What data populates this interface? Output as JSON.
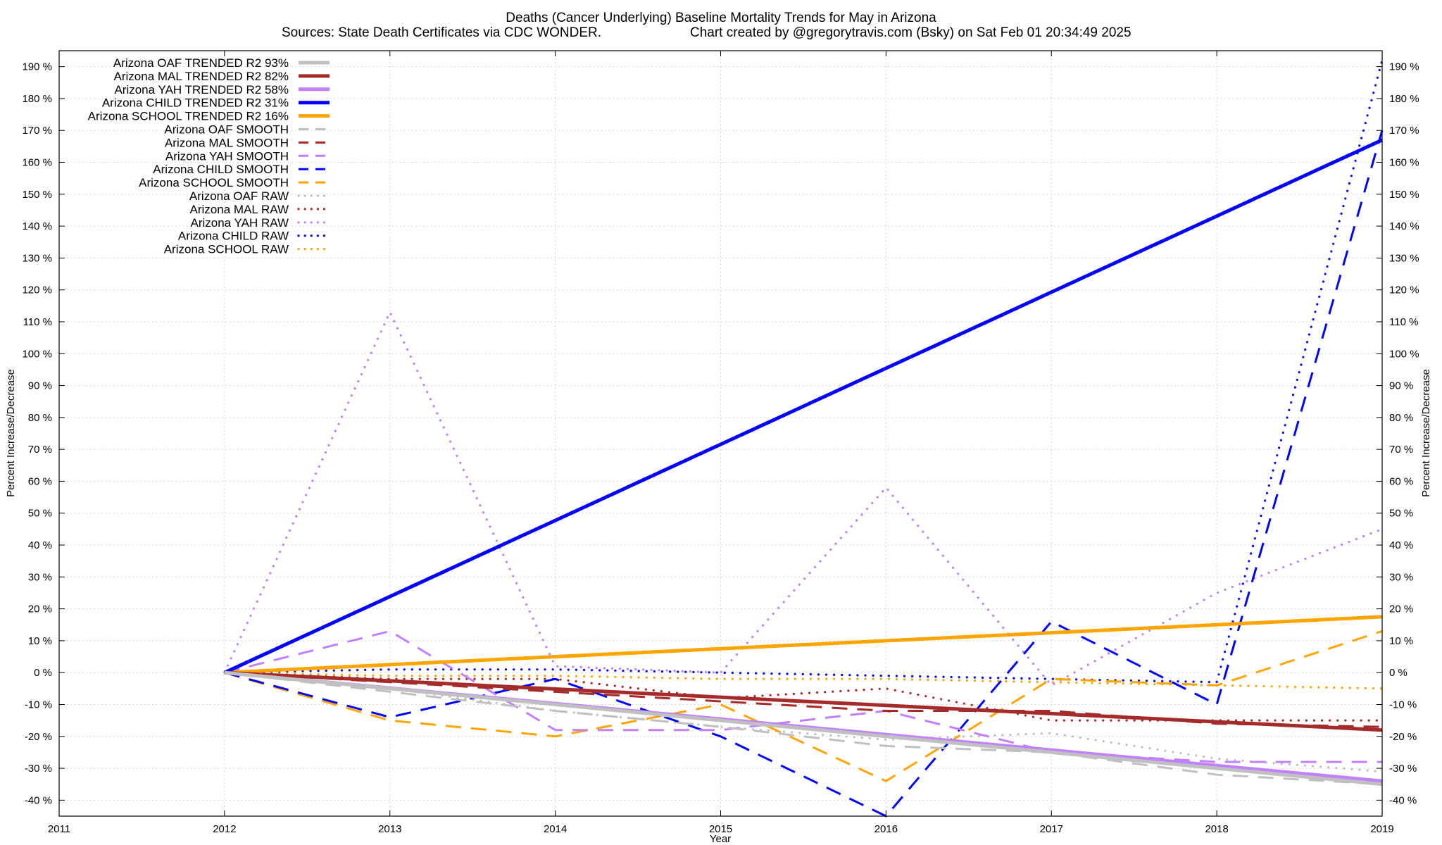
{
  "chart_data": {
    "type": "line",
    "title": "Deaths (Cancer Underlying)  Baseline Mortality Trends for May in Arizona",
    "subtitle_left": "Sources: State Death Certificates via CDC WONDER.",
    "subtitle_right": "Chart created by @gregorytravis.com (Bsky) on Sat Feb 01 20:34:49 2025",
    "xlabel": "Year",
    "ylabel": "Percent Increase/Decrease",
    "y2label": "Percent Increase/Decrease",
    "xlim": [
      2011,
      2019
    ],
    "ylim": [
      -45,
      195
    ],
    "x_ticks": [
      "2011",
      "2012",
      "2013",
      "2014",
      "2015",
      "2016",
      "2017",
      "2018",
      "2019"
    ],
    "y_ticks": [
      "-40 %",
      "-30 %",
      "-20 %",
      "-10 %",
      "0 %",
      "10 %",
      "20 %",
      "30 %",
      "40 %",
      "50 %",
      "60 %",
      "70 %",
      "80 %",
      "90 %",
      "100 %",
      "110 %",
      "120 %",
      "130 %",
      "140 %",
      "150 %",
      "160 %",
      "170 %",
      "180 %",
      "190 %"
    ],
    "grid": true,
    "legend_position": "top-left",
    "series": [
      {
        "name": "Arizona OAF TRENDED R2  93%",
        "color": "#c0c0c0",
        "style": "solid",
        "x": [
          2012,
          2019
        ],
        "y": [
          0,
          -35
        ]
      },
      {
        "name": "Arizona MAL TRENDED R2  82%",
        "color": "#a52a2a",
        "style": "solid",
        "x": [
          2012,
          2019
        ],
        "y": [
          0,
          -18
        ]
      },
      {
        "name": "Arizona YAH TRENDED R2  58%",
        "color": "#c080ff",
        "style": "solid",
        "x": [
          2012,
          2019
        ],
        "y": [
          0,
          -34
        ]
      },
      {
        "name": "Arizona CHILD TRENDED R2  31%",
        "color": "#0000ff",
        "style": "solid",
        "x": [
          2012,
          2019
        ],
        "y": [
          0,
          167
        ]
      },
      {
        "name": "Arizona SCHOOL TRENDED R2  16%",
        "color": "#ffa500",
        "style": "solid",
        "x": [
          2012,
          2019
        ],
        "y": [
          0,
          17.5
        ]
      },
      {
        "name": "Arizona OAF SMOOTH",
        "color": "#c0c0c0",
        "style": "dashed",
        "x": [
          2012,
          2013,
          2014,
          2015,
          2016,
          2017,
          2018,
          2019
        ],
        "y": [
          0,
          -6,
          -12,
          -17,
          -23,
          -25,
          -32,
          -35
        ]
      },
      {
        "name": "Arizona MAL SMOOTH",
        "color": "#a52a2a",
        "style": "dashed",
        "x": [
          2012,
          2013,
          2014,
          2015,
          2016,
          2017,
          2018,
          2019
        ],
        "y": [
          0,
          -3,
          -6,
          -9,
          -12,
          -12,
          -16,
          -17
        ]
      },
      {
        "name": "Arizona YAH SMOOTH",
        "color": "#c080ff",
        "style": "dashed",
        "x": [
          2012,
          2013,
          2014,
          2015,
          2016,
          2017,
          2018,
          2019
        ],
        "y": [
          0,
          13,
          -18,
          -18,
          -12,
          -25,
          -28,
          -28
        ]
      },
      {
        "name": "Arizona CHILD SMOOTH",
        "color": "#0000ff",
        "style": "dashed",
        "x": [
          2012,
          2013,
          2014,
          2015,
          2016,
          2017,
          2018,
          2019
        ],
        "y": [
          0,
          -14,
          -2,
          -20,
          -45,
          16,
          -10,
          170
        ]
      },
      {
        "name": "Arizona SCHOOL SMOOTH",
        "color": "#ffa500",
        "style": "dashed",
        "x": [
          2012,
          2013,
          2014,
          2015,
          2016,
          2017,
          2018,
          2019
        ],
        "y": [
          0,
          -15,
          -20,
          -10,
          -34,
          -2,
          -4,
          13
        ]
      },
      {
        "name": "Arizona OAF RAW",
        "color": "#c0c0c0",
        "style": "dotted",
        "x": [
          2012,
          2013,
          2014,
          2015,
          2016,
          2017,
          2018,
          2019
        ],
        "y": [
          0,
          -5,
          -12,
          -17,
          -21,
          -19,
          -27,
          -31
        ]
      },
      {
        "name": "Arizona MAL RAW",
        "color": "#a52a2a",
        "style": "dotted",
        "x": [
          2012,
          2013,
          2014,
          2015,
          2016,
          2017,
          2018,
          2019
        ],
        "y": [
          0,
          -2,
          -2,
          -8,
          -5,
          -15,
          -15,
          -15
        ]
      },
      {
        "name": "Arizona YAH RAW",
        "color": "#c080ff",
        "style": "dotted",
        "x": [
          2012,
          2013,
          2014,
          2015,
          2016,
          2017,
          2018,
          2019
        ],
        "y": [
          0,
          113,
          2,
          0,
          58,
          -4,
          25,
          45
        ]
      },
      {
        "name": "Arizona CHILD RAW",
        "color": "#0000ff",
        "style": "dotted",
        "x": [
          2012,
          2013,
          2014,
          2015,
          2016,
          2017,
          2018,
          2019
        ],
        "y": [
          0,
          1,
          1,
          0,
          -1,
          -2,
          -3,
          192
        ]
      },
      {
        "name": "Arizona SCHOOL RAW",
        "color": "#ffa500",
        "style": "dotted",
        "x": [
          2012,
          2013,
          2014,
          2015,
          2016,
          2017,
          2018,
          2019
        ],
        "y": [
          0,
          -1,
          -1,
          -2,
          -2,
          -3,
          -4,
          -5
        ]
      }
    ]
  }
}
